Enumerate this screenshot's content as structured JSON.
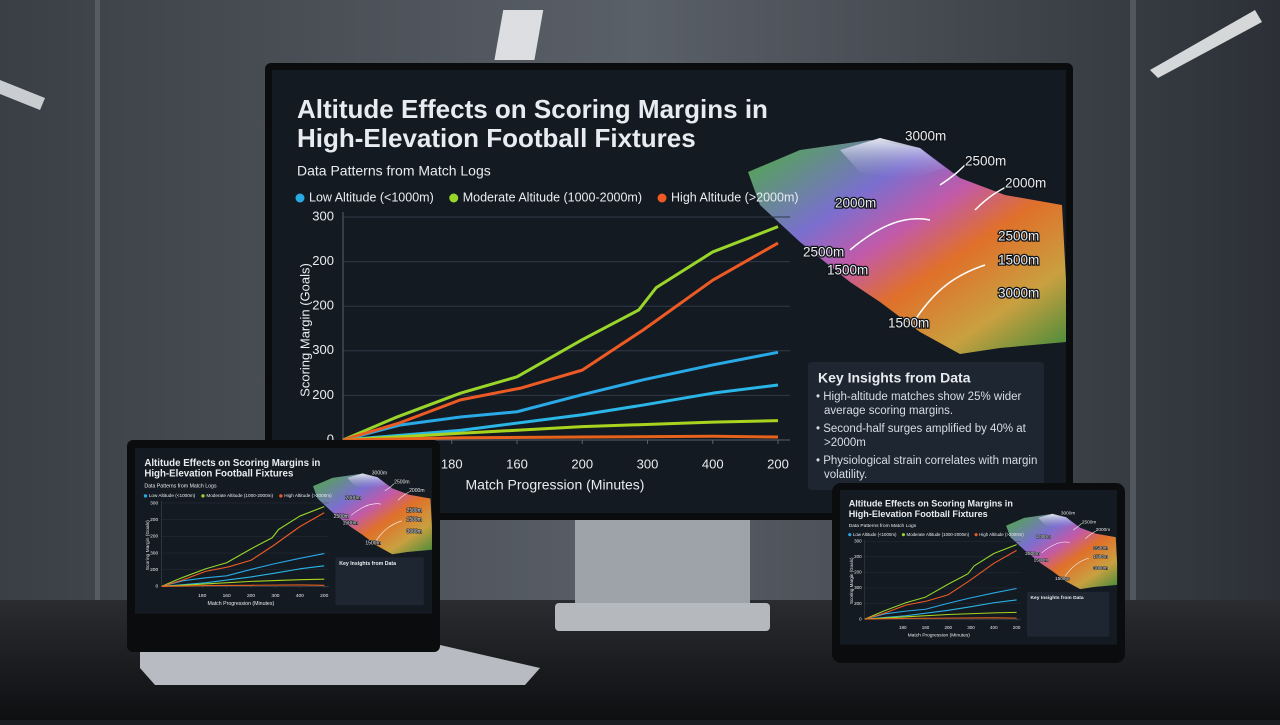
{
  "chart_data": {
    "type": "line",
    "title": "Altitude Effects on Scoring Margins in",
    "title_line2": "High-Elevation Football Fixtures",
    "subtitle": "Data Patterns from Match Logs",
    "y_label": "Scoring Margin (Goals)",
    "x_label": "Match Progression (Minutes)",
    "xlim": [
      0,
      100
    ],
    "ylim": [
      0,
      300
    ],
    "grid": true,
    "legend": "top",
    "xticks": [
      {
        "value": 25,
        "label": "180"
      },
      {
        "value": 40,
        "label": "160"
      },
      {
        "value": 55,
        "label": "200"
      },
      {
        "value": 70,
        "label": "300"
      },
      {
        "value": 85,
        "label": "400"
      },
      {
        "value": 100,
        "label": "200"
      }
    ],
    "yticks": [
      0,
      {
        "value": 60,
        "label": "200"
      },
      {
        "value": 120,
        "label": "300"
      },
      {
        "value": 180,
        "label": "200"
      },
      {
        "value": 240,
        "label": "200"
      },
      300
    ],
    "series": [
      {
        "name": "Low Altitude (<1000m)",
        "color": "#29a9e6",
        "x": [
          0,
          13,
          27,
          40,
          55,
          69,
          85,
          100
        ],
        "values": [
          0,
          20,
          31,
          38,
          61,
          81,
          101,
          118
        ]
      },
      {
        "name": "Moderate Altitude (1000-2000m)",
        "color": "#9ad62a",
        "x": [
          0,
          12,
          27,
          40,
          55,
          68,
          72,
          85,
          100
        ],
        "values": [
          0,
          30,
          63,
          85,
          135,
          175,
          205,
          253,
          287
        ]
      },
      {
        "name": "High Altitude (>2000m)",
        "color": "#ee5a24",
        "x": [
          0,
          13,
          27,
          41,
          55,
          69,
          85,
          100
        ],
        "values": [
          0,
          23,
          54,
          70,
          94,
          148,
          215,
          265
        ]
      },
      {
        "color": "#2bb6e8",
        "x": [
          0,
          27,
          55,
          69,
          85,
          100
        ],
        "values": [
          0,
          13,
          34,
          47,
          63,
          74
        ]
      },
      {
        "color": "#a8d41e",
        "x": [
          0,
          27,
          55,
          85,
          100
        ],
        "values": [
          0,
          9,
          18,
          24,
          26
        ]
      },
      {
        "color": "#e8621c",
        "x": [
          0,
          27,
          55,
          85,
          100
        ],
        "values": [
          0,
          3,
          4,
          5,
          4
        ]
      }
    ],
    "insights": {
      "title": "Key Insights from Data",
      "bullets": [
        "High-altitude matches show 25% wider average scoring margins.",
        "Second-half surges amplified by 40% at >2000m",
        "Physiological strain correlates with margin volatility."
      ]
    },
    "annotations": [
      "3000m",
      "2500m",
      "2000m",
      "2000m",
      "2500m",
      "1500m",
      "2500m",
      "1500m",
      "3000m",
      "1500m"
    ]
  }
}
